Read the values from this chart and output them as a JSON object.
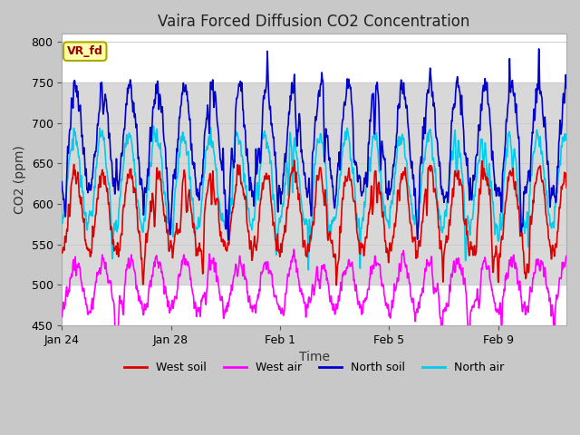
{
  "title": "Vaira Forced Diffusion CO2 Concentration",
  "xlabel": "Time",
  "ylabel": "CO2 (ppm)",
  "ylim": [
    450,
    810
  ],
  "yticks": [
    450,
    500,
    550,
    600,
    650,
    700,
    750,
    800
  ],
  "xlim_days": [
    0,
    18.5
  ],
  "xtick_days": [
    0,
    4,
    8,
    12,
    16
  ],
  "xtick_labels": [
    "Jan 24",
    "Jan 28",
    "Feb 1",
    "Feb 5",
    "Feb 9"
  ],
  "colors": {
    "west_soil": "#dd0000",
    "west_air": "#ff00ff",
    "north_soil": "#0000cc",
    "north_air": "#00ccee"
  },
  "legend": [
    "West soil",
    "West air",
    "North soil",
    "North air"
  ],
  "vr_fd_label": "VR_fd",
  "shaded_ymin": 500,
  "shaded_ymax": 750,
  "fig_facecolor": "#c8c8c8",
  "plot_facecolor": "#ffffff",
  "n_points": 2000,
  "duration_days": 18.5,
  "north_soil_base": 680,
  "north_soil_amp": 65,
  "north_soil_noise": 15,
  "north_air_base": 630,
  "north_air_amp": 55,
  "north_air_noise": 12,
  "west_soil_base": 590,
  "west_soil_amp": 50,
  "west_soil_noise": 12,
  "west_air_base": 500,
  "west_air_amp": 30,
  "west_air_noise": 10,
  "period_days": 1.0
}
